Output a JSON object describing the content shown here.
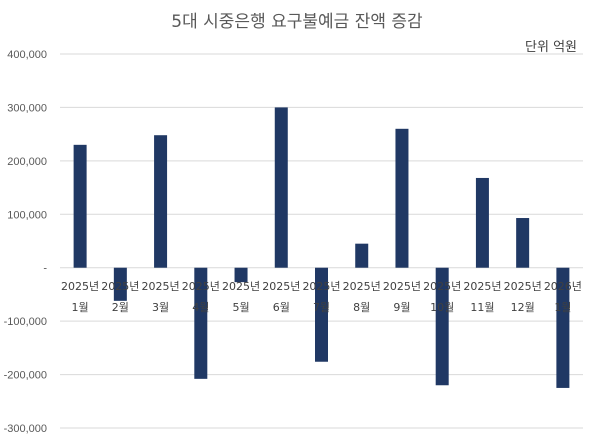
{
  "chart_data": {
    "type": "bar",
    "title": "5대 시중은행 요구불예금 잔액 증감",
    "unit_label": "단위 억원",
    "categories": [
      [
        "2025년",
        "1월"
      ],
      [
        "2025년",
        "2월"
      ],
      [
        "2025년",
        "3월"
      ],
      [
        "2025년",
        "4월"
      ],
      [
        "2025년",
        "5월"
      ],
      [
        "2025년",
        "6월"
      ],
      [
        "2025년",
        "7월"
      ],
      [
        "2025년",
        "8월"
      ],
      [
        "2025년",
        "9월"
      ],
      [
        "2025년",
        "10월"
      ],
      [
        "2025년",
        "11월"
      ],
      [
        "2025년",
        "12월"
      ],
      [
        "2026년",
        "1월"
      ]
    ],
    "values": [
      230000,
      -62000,
      248000,
      -208000,
      -27000,
      300000,
      -176000,
      45000,
      260000,
      -220000,
      168000,
      93000,
      -225000
    ],
    "ylim": [
      -300000,
      400000
    ],
    "yticks": [
      400000,
      300000,
      200000,
      100000,
      0,
      -100000,
      -200000,
      -300000
    ],
    "ytick_labels": [
      "400,000",
      "300,000",
      "200,000",
      "100,000",
      "-",
      "-100,000",
      "-200,000",
      "-300,000"
    ],
    "grid": true,
    "color": "#203864"
  }
}
